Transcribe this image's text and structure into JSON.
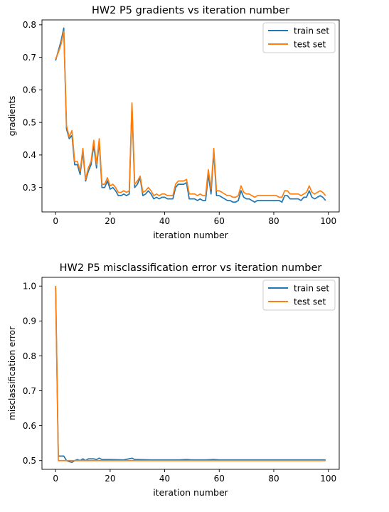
{
  "chart_data": [
    {
      "type": "line",
      "title": "HW2 P5 gradients vs iteration number",
      "xlabel": "iteration number",
      "ylabel": "gradients",
      "xlim": [
        -5,
        104
      ],
      "ylim": [
        0.225,
        0.815
      ],
      "xticks": [
        0,
        20,
        40,
        60,
        80,
        100
      ],
      "yticks": [
        0.3,
        0.4,
        0.5,
        0.6,
        0.7,
        0.8
      ],
      "ytick_labels": [
        "0.3",
        "0.4",
        "0.5",
        "0.6",
        "0.7",
        "0.8"
      ],
      "grid": false,
      "legend_position": "top-right",
      "series": [
        {
          "name": "train set",
          "color": "#1f77b4",
          "x": [
            0,
            1,
            2,
            3,
            4,
            5,
            6,
            7,
            8,
            9,
            10,
            11,
            12,
            13,
            14,
            15,
            16,
            17,
            18,
            19,
            20,
            21,
            22,
            23,
            24,
            25,
            26,
            27,
            28,
            29,
            30,
            31,
            32,
            33,
            34,
            35,
            36,
            37,
            38,
            39,
            40,
            41,
            42,
            43,
            44,
            45,
            46,
            47,
            48,
            49,
            50,
            51,
            52,
            53,
            54,
            55,
            56,
            57,
            58,
            59,
            60,
            61,
            62,
            63,
            64,
            65,
            66,
            67,
            68,
            69,
            70,
            71,
            72,
            73,
            74,
            75,
            76,
            77,
            78,
            79,
            80,
            81,
            82,
            83,
            84,
            85,
            86,
            87,
            88,
            89,
            90,
            91,
            92,
            93,
            94,
            95,
            96,
            97,
            98,
            99
          ],
          "y": [
            0.69,
            0.72,
            0.75,
            0.79,
            0.48,
            0.45,
            0.46,
            0.37,
            0.37,
            0.34,
            0.41,
            0.32,
            0.35,
            0.37,
            0.43,
            0.36,
            0.44,
            0.3,
            0.3,
            0.32,
            0.295,
            0.3,
            0.29,
            0.275,
            0.275,
            0.28,
            0.275,
            0.28,
            0.55,
            0.3,
            0.31,
            0.33,
            0.275,
            0.28,
            0.29,
            0.28,
            0.265,
            0.27,
            0.265,
            0.27,
            0.27,
            0.265,
            0.265,
            0.265,
            0.3,
            0.31,
            0.31,
            0.31,
            0.315,
            0.265,
            0.265,
            0.265,
            0.26,
            0.265,
            0.26,
            0.26,
            0.34,
            0.28,
            0.41,
            0.275,
            0.275,
            0.27,
            0.265,
            0.26,
            0.26,
            0.255,
            0.255,
            0.26,
            0.29,
            0.27,
            0.265,
            0.265,
            0.26,
            0.255,
            0.26,
            0.26,
            0.26,
            0.26,
            0.26,
            0.26,
            0.26,
            0.26,
            0.26,
            0.255,
            0.275,
            0.275,
            0.265,
            0.265,
            0.265,
            0.265,
            0.26,
            0.27,
            0.27,
            0.29,
            0.27,
            0.265,
            0.27,
            0.275,
            0.27,
            0.26
          ]
        },
        {
          "name": "test set",
          "color": "#ff7f0e",
          "x": [
            0,
            1,
            2,
            3,
            4,
            5,
            6,
            7,
            8,
            9,
            10,
            11,
            12,
            13,
            14,
            15,
            16,
            17,
            18,
            19,
            20,
            21,
            22,
            23,
            24,
            25,
            26,
            27,
            28,
            29,
            30,
            31,
            32,
            33,
            34,
            35,
            36,
            37,
            38,
            39,
            40,
            41,
            42,
            43,
            44,
            45,
            46,
            47,
            48,
            49,
            50,
            51,
            52,
            53,
            54,
            55,
            56,
            57,
            58,
            59,
            60,
            61,
            62,
            63,
            64,
            65,
            66,
            67,
            68,
            69,
            70,
            71,
            72,
            73,
            74,
            75,
            76,
            77,
            78,
            79,
            80,
            81,
            82,
            83,
            84,
            85,
            86,
            87,
            88,
            89,
            90,
            91,
            92,
            93,
            94,
            95,
            96,
            97,
            98,
            99
          ],
          "y": [
            0.695,
            0.715,
            0.74,
            0.78,
            0.49,
            0.455,
            0.475,
            0.38,
            0.38,
            0.35,
            0.42,
            0.325,
            0.36,
            0.38,
            0.445,
            0.37,
            0.45,
            0.31,
            0.31,
            0.33,
            0.305,
            0.31,
            0.3,
            0.285,
            0.285,
            0.29,
            0.285,
            0.29,
            0.56,
            0.31,
            0.32,
            0.335,
            0.285,
            0.29,
            0.3,
            0.29,
            0.275,
            0.28,
            0.275,
            0.28,
            0.28,
            0.275,
            0.275,
            0.275,
            0.31,
            0.32,
            0.32,
            0.32,
            0.325,
            0.28,
            0.28,
            0.28,
            0.275,
            0.28,
            0.275,
            0.275,
            0.355,
            0.295,
            0.42,
            0.29,
            0.29,
            0.285,
            0.28,
            0.275,
            0.275,
            0.27,
            0.27,
            0.275,
            0.305,
            0.285,
            0.28,
            0.28,
            0.275,
            0.27,
            0.275,
            0.275,
            0.275,
            0.275,
            0.275,
            0.275,
            0.275,
            0.275,
            0.27,
            0.27,
            0.29,
            0.29,
            0.28,
            0.28,
            0.28,
            0.28,
            0.275,
            0.28,
            0.285,
            0.305,
            0.285,
            0.28,
            0.285,
            0.29,
            0.285,
            0.275
          ]
        }
      ]
    },
    {
      "type": "line",
      "title": "HW2 P5 misclassification error vs iteration number",
      "xlabel": "iteration number",
      "ylabel": "misclassification error",
      "xlim": [
        -5,
        104
      ],
      "ylim": [
        0.475,
        1.025
      ],
      "xticks": [
        0,
        20,
        40,
        60,
        80,
        100
      ],
      "yticks": [
        0.5,
        0.6,
        0.7,
        0.8,
        0.9,
        1.0
      ],
      "ytick_labels": [
        "0.5",
        "0.6",
        "0.7",
        "0.8",
        "0.9",
        "1.0"
      ],
      "grid": false,
      "legend_position": "top-right",
      "series": [
        {
          "name": "train set",
          "color": "#1f77b4",
          "x": [
            0,
            1,
            2,
            3,
            4,
            5,
            6,
            7,
            8,
            9,
            10,
            11,
            12,
            13,
            14,
            15,
            16,
            17,
            18,
            19,
            20,
            25,
            28,
            29,
            30,
            35,
            40,
            45,
            48,
            50,
            55,
            58,
            60,
            70,
            80,
            90,
            99
          ],
          "y": [
            1.0,
            0.513,
            0.513,
            0.513,
            0.5,
            0.497,
            0.495,
            0.5,
            0.503,
            0.5,
            0.505,
            0.5,
            0.505,
            0.505,
            0.505,
            0.503,
            0.507,
            0.503,
            0.503,
            0.503,
            0.503,
            0.502,
            0.507,
            0.503,
            0.503,
            0.502,
            0.502,
            0.502,
            0.503,
            0.502,
            0.502,
            0.503,
            0.502,
            0.502,
            0.502,
            0.502,
            0.502
          ]
        },
        {
          "name": "test set",
          "color": "#ff7f0e",
          "x": [
            0,
            1,
            2,
            3,
            4,
            5,
            6,
            7,
            8,
            9,
            10,
            11,
            12,
            13,
            14,
            15,
            16,
            17,
            18,
            19,
            20,
            25,
            28,
            29,
            30,
            35,
            40,
            45,
            48,
            50,
            55,
            58,
            60,
            70,
            80,
            90,
            99
          ],
          "y": [
            1.0,
            0.5,
            0.5,
            0.5,
            0.5,
            0.5,
            0.5,
            0.5,
            0.5,
            0.5,
            0.5,
            0.5,
            0.5,
            0.5,
            0.5,
            0.5,
            0.5,
            0.5,
            0.5,
            0.5,
            0.5,
            0.5,
            0.5,
            0.5,
            0.5,
            0.5,
            0.5,
            0.5,
            0.5,
            0.5,
            0.5,
            0.5,
            0.5,
            0.5,
            0.5,
            0.5,
            0.5
          ]
        }
      ]
    }
  ]
}
